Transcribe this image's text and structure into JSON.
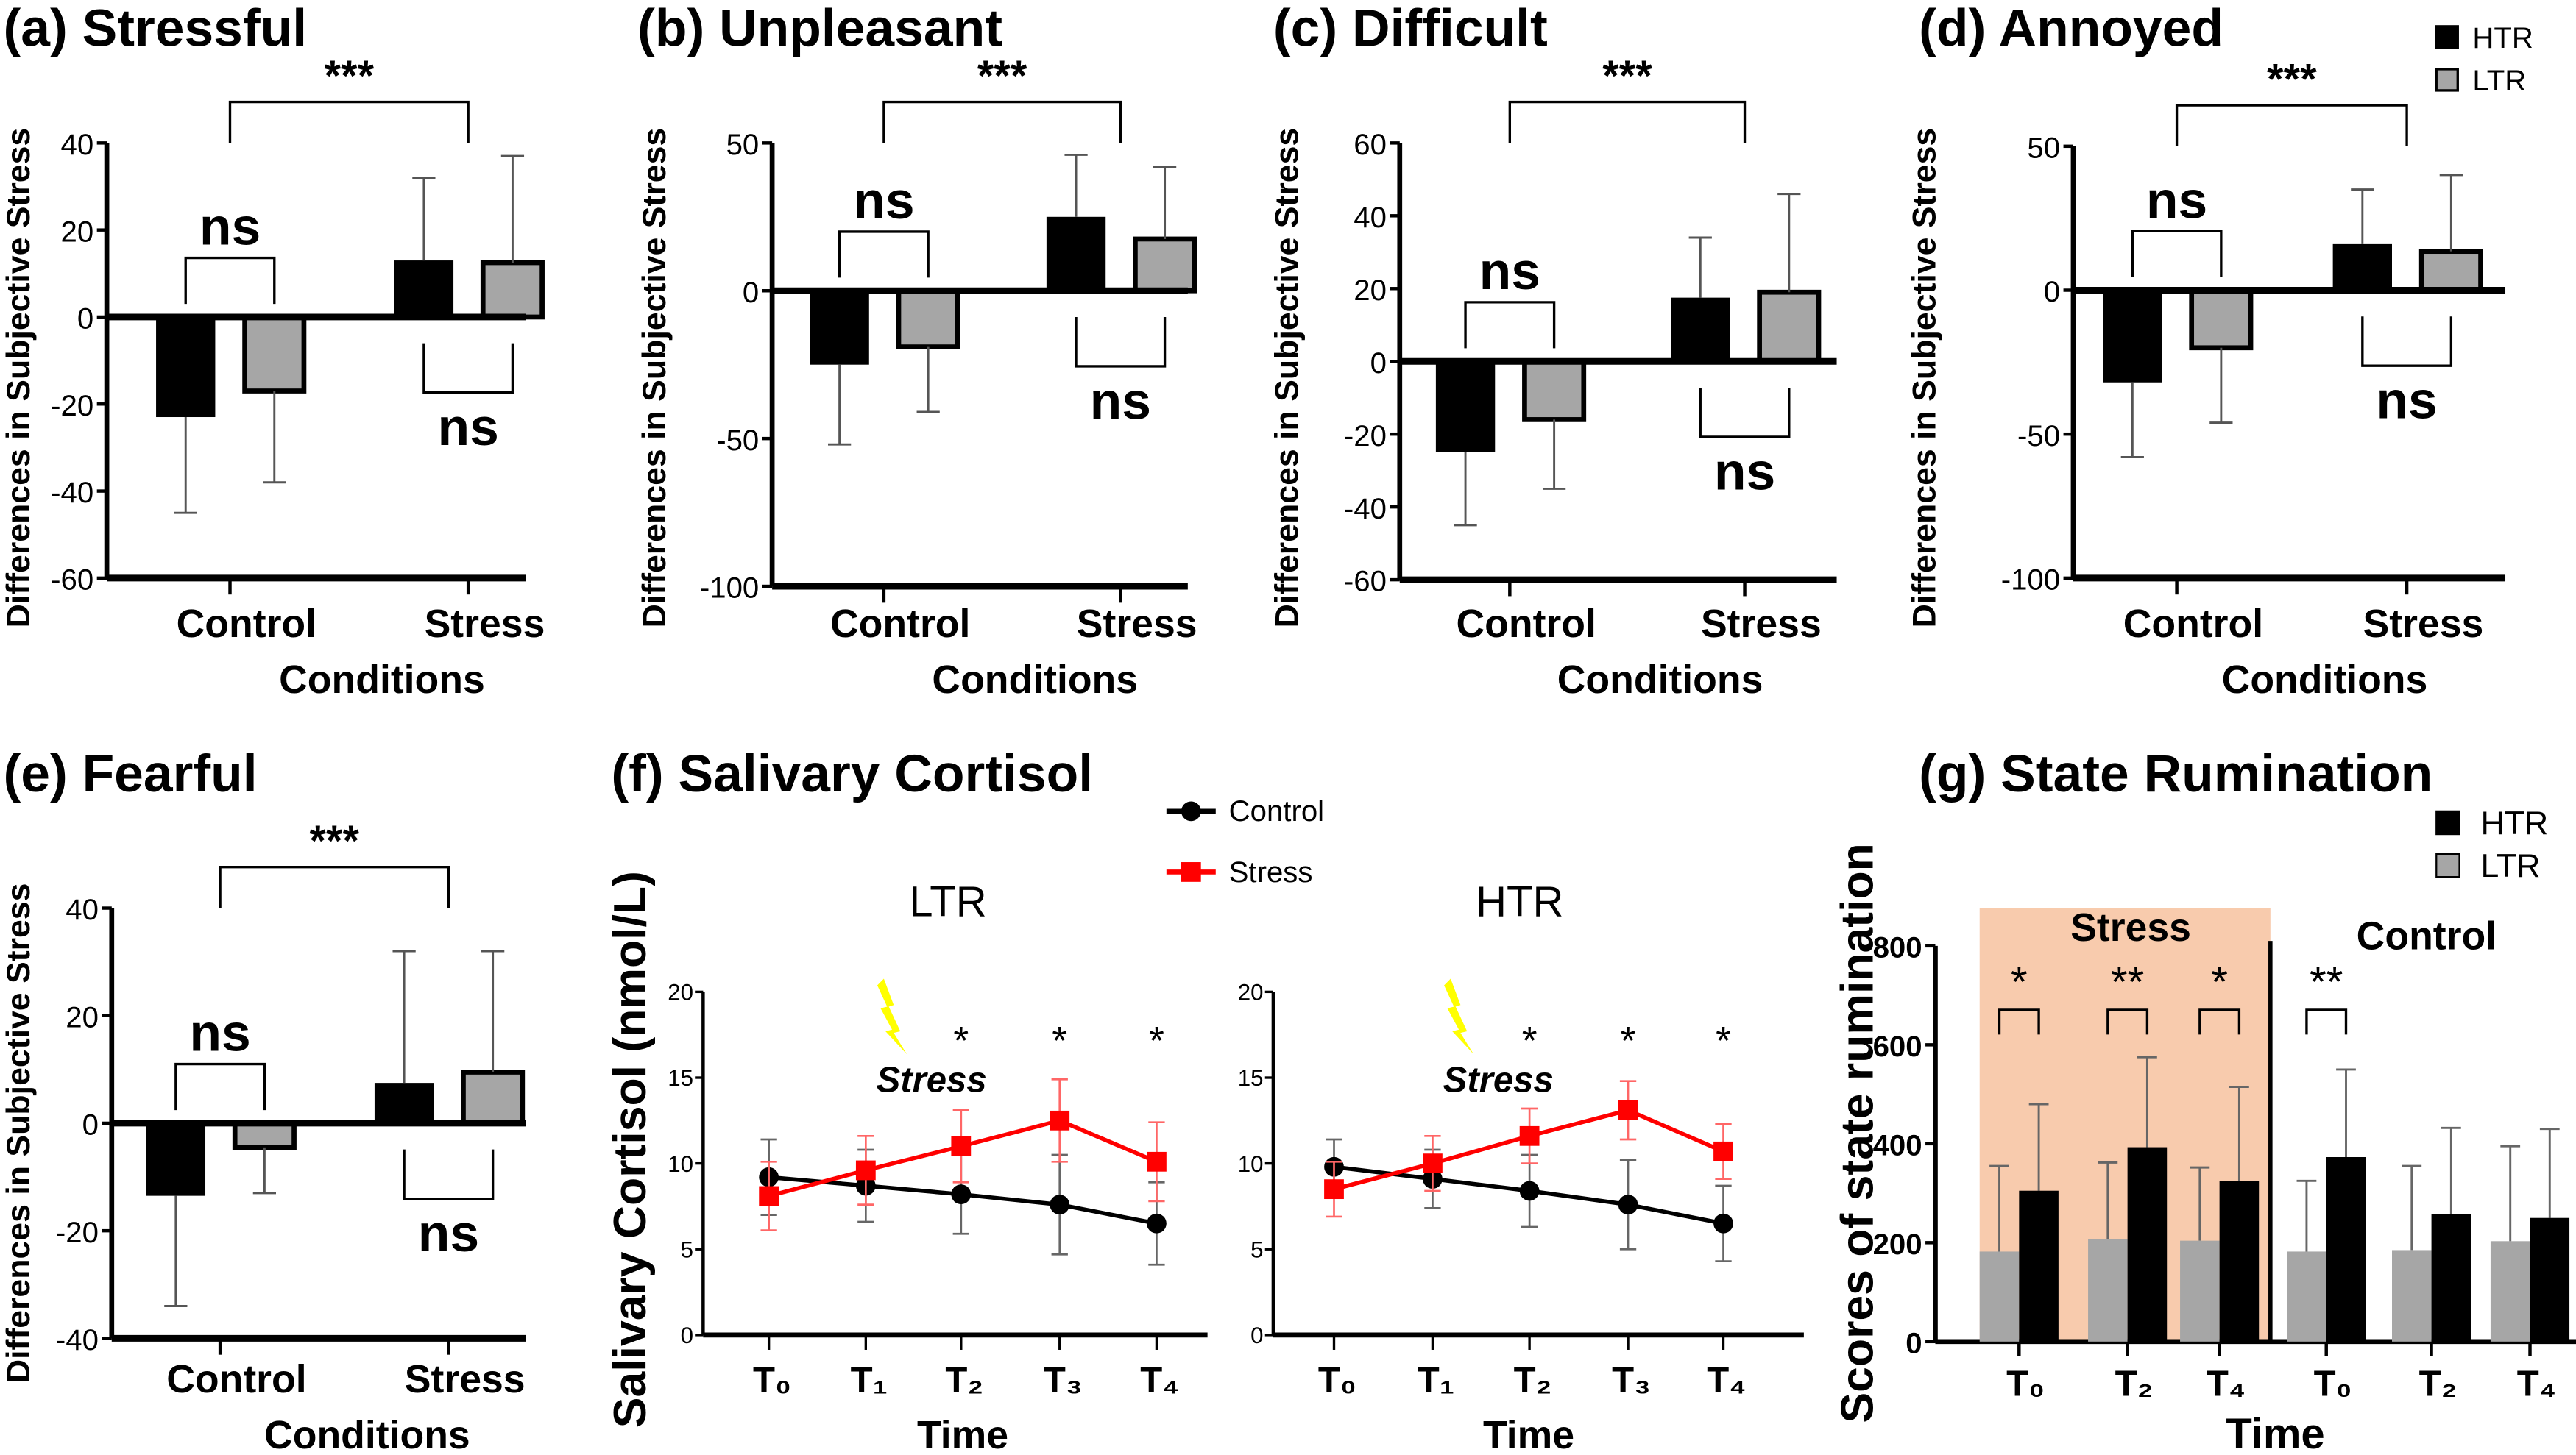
{
  "colors": {
    "HTR": "#000000",
    "LTR": "#a6a6a6",
    "control_line": "#000000",
    "stress_line": "#ff0000",
    "stress_background": "#f8cbad",
    "lightning": "#ffff00"
  },
  "legend_top": {
    "items": [
      {
        "label": "HTR",
        "color": "#000000"
      },
      {
        "label": "LTR",
        "color": "#a6a6a6"
      }
    ]
  },
  "chart_data": [
    {
      "type": "bar",
      "title": "(a) Stressful",
      "ylabel": "Differences in Subjective Stress",
      "xlabel": "Conditions",
      "categories": [
        "Control",
        "Stress"
      ],
      "ylim": [
        -60,
        40
      ],
      "yticks": [
        "-60",
        "-40",
        "-20",
        "0",
        "20",
        "40"
      ],
      "series": [
        {
          "name": "HTR",
          "values": [
            -23,
            13
          ],
          "error": [
            22,
            19
          ]
        },
        {
          "name": "LTR",
          "values": [
            -17,
            12.5
          ],
          "error": [
            21,
            24.5
          ]
        }
      ],
      "annotations": {
        "between_conditions": "***",
        "within_control": "ns",
        "within_stress": "ns"
      }
    },
    {
      "type": "bar",
      "title": "(b) Unpleasant",
      "ylabel": "Differences in Subjective Stress",
      "xlabel": "Conditions",
      "categories": [
        "Control",
        "Stress"
      ],
      "ylim": [
        -100,
        50
      ],
      "yticks": [
        "-100",
        "-50",
        "0",
        "50"
      ],
      "series": [
        {
          "name": "HTR",
          "values": [
            -25,
            25
          ],
          "error": [
            27,
            21
          ]
        },
        {
          "name": "LTR",
          "values": [
            -19,
            17.5
          ],
          "error": [
            22,
            24.5
          ]
        }
      ],
      "annotations": {
        "between_conditions": "***",
        "within_control": "ns",
        "within_stress": "ns"
      }
    },
    {
      "type": "bar",
      "title": "(c) Difficult",
      "ylabel": "Differences in Subjective Stress",
      "xlabel": "Conditions",
      "categories": [
        "Control",
        "Stress"
      ],
      "ylim": [
        -60,
        60
      ],
      "yticks": [
        "-60",
        "-40",
        "-20",
        "0",
        "20",
        "40",
        "60"
      ],
      "series": [
        {
          "name": "HTR",
          "values": [
            -25,
            17.5
          ],
          "error": [
            20,
            16.5
          ]
        },
        {
          "name": "LTR",
          "values": [
            -16,
            19
          ],
          "error": [
            19,
            27
          ]
        }
      ],
      "annotations": {
        "between_conditions": "***",
        "within_control": "ns",
        "within_stress": "ns"
      }
    },
    {
      "type": "bar",
      "title": "(d) Annoyed",
      "ylabel": "Differences in Subjective Stress",
      "xlabel": "Conditions",
      "categories": [
        "Control",
        "Stress"
      ],
      "ylim": [
        -100,
        50
      ],
      "yticks": [
        "-100",
        "-50",
        "0",
        "50"
      ],
      "series": [
        {
          "name": "HTR",
          "values": [
            -32,
            16
          ],
          "error": [
            26,
            19
          ]
        },
        {
          "name": "LTR",
          "values": [
            -20,
            13.5
          ],
          "error": [
            26,
            26.5
          ]
        }
      ],
      "annotations": {
        "between_conditions": "***",
        "within_control": "ns",
        "within_stress": "ns"
      }
    },
    {
      "type": "bar",
      "title": "(e) Fearful",
      "ylabel": "Differences in Subjective Stress",
      "xlabel": "Conditions",
      "categories": [
        "Control",
        "Stress"
      ],
      "ylim": [
        -40,
        40
      ],
      "yticks": [
        "-40",
        "-20",
        "0",
        "20",
        "40"
      ],
      "series": [
        {
          "name": "HTR",
          "values": [
            -13.5,
            7.5
          ],
          "error": [
            20.5,
            24.5
          ]
        },
        {
          "name": "LTR",
          "values": [
            -4.5,
            9.5
          ],
          "error": [
            8.5,
            22.5
          ]
        }
      ],
      "annotations": {
        "between_conditions": "***",
        "within_control": "ns",
        "within_stress": "ns"
      }
    },
    {
      "type": "line",
      "title": "(f) Salivary Cortisol",
      "ylabel": "Salivary Cortisol (nmol/L)",
      "xlabel": "Time",
      "categories": [
        "T₀",
        "T₁",
        "T₂",
        "T₃",
        "T₄"
      ],
      "ylim": [
        0,
        20
      ],
      "yticks": [
        "0",
        "5",
        "10",
        "15",
        "20"
      ],
      "legend": [
        {
          "label": "Control",
          "marker": "circle",
          "color": "#000000"
        },
        {
          "label": "Stress",
          "marker": "square",
          "color": "#ff0000"
        }
      ],
      "event_label": "Stress",
      "subplots": [
        {
          "subtitle": "LTR",
          "significance": [
            "",
            "",
            "*",
            "*",
            "*"
          ],
          "series": [
            {
              "name": "Control",
              "values": [
                9.2,
                8.7,
                8.2,
                7.6,
                6.5
              ],
              "sd": [
                2.2,
                2.1,
                2.3,
                2.9,
                2.4
              ]
            },
            {
              "name": "Stress",
              "values": [
                8.1,
                9.6,
                11.0,
                12.5,
                10.1
              ],
              "sd": [
                2.0,
                2.0,
                2.1,
                2.4,
                2.3
              ]
            }
          ]
        },
        {
          "subtitle": "HTR",
          "significance": [
            "",
            "",
            "*",
            "*",
            "*"
          ],
          "series": [
            {
              "name": "Control",
              "values": [
                9.8,
                9.1,
                8.4,
                7.6,
                6.5
              ],
              "sd": [
                1.6,
                1.7,
                2.1,
                2.6,
                2.2
              ]
            },
            {
              "name": "Stress",
              "values": [
                8.5,
                10.0,
                11.6,
                13.1,
                10.7
              ],
              "sd": [
                1.6,
                1.6,
                1.6,
                1.7,
                1.6
              ]
            }
          ]
        }
      ]
    },
    {
      "type": "bar",
      "title": "(g) State Rumination",
      "ylabel": "Scores of state rumination",
      "xlabel": "Time",
      "ylim": [
        0,
        800
      ],
      "yticks": [
        "0",
        "200",
        "400",
        "600",
        "800"
      ],
      "legend": [
        {
          "label": "HTR",
          "color": "#000000"
        },
        {
          "label": "LTR",
          "color": "#a6a6a6"
        }
      ],
      "groups": [
        {
          "label": "Stress",
          "categories": [
            "T₀",
            "T₂",
            "T₄"
          ],
          "significance": [
            "*",
            "**",
            "*"
          ],
          "series": [
            {
              "name": "LTR",
              "values": [
                182,
                207,
                204
              ],
              "error": [
                173,
                155,
                148
              ]
            },
            {
              "name": "HTR",
              "values": [
                305,
                393,
                325
              ],
              "error": [
                175,
                182,
                190
              ]
            }
          ]
        },
        {
          "label": "Control",
          "categories": [
            "T₀",
            "T₂",
            "T₄"
          ],
          "significance": [
            "**",
            "",
            ""
          ],
          "series": [
            {
              "name": "LTR",
              "values": [
                182,
                185,
                203
              ],
              "error": [
                143,
                170,
                192
              ]
            },
            {
              "name": "HTR",
              "values": [
                373,
                258,
                250
              ],
              "error": [
                177,
                174,
                180
              ]
            }
          ]
        }
      ]
    }
  ]
}
